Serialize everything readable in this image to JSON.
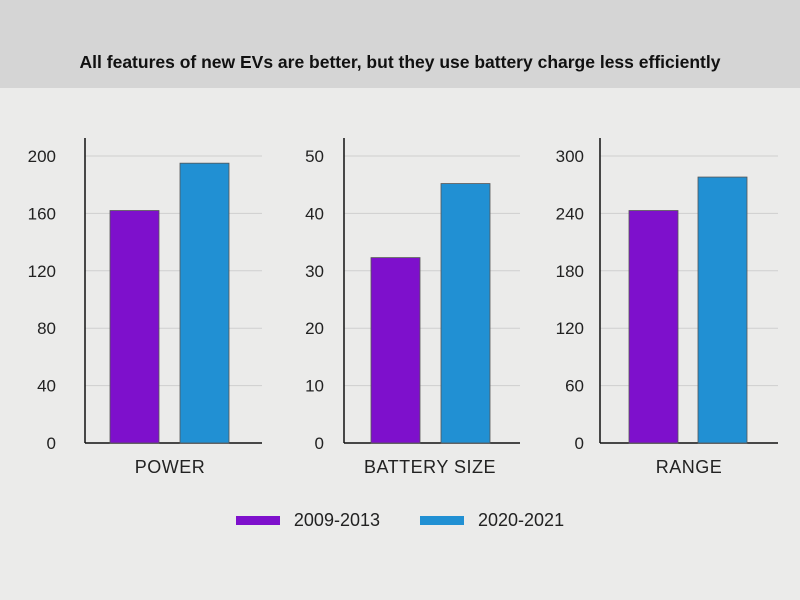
{
  "title": "All features of new EVs are better, but they use battery charge less efficiently",
  "colors": {
    "series_1": "#7e10cc",
    "series_2": "#2190d3",
    "header_bg": "#d5d5d5",
    "bg": "#ebebea",
    "grid": "#cfcfcf"
  },
  "legend": [
    {
      "label": "2009-2013",
      "color": "#7e10cc"
    },
    {
      "label": "2020-2021",
      "color": "#2190d3"
    }
  ],
  "chart_data": [
    {
      "type": "bar",
      "categories": [
        "POWER"
      ],
      "series": [
        {
          "name": "2009-2013",
          "values": [
            162
          ]
        },
        {
          "name": "2020-2021",
          "values": [
            195
          ]
        }
      ],
      "ylim": [
        0,
        200
      ],
      "yticks": [
        0,
        40,
        80,
        120,
        160,
        200
      ],
      "grid": true
    },
    {
      "type": "bar",
      "categories": [
        "BATTERY SIZE"
      ],
      "series": [
        {
          "name": "2009-2013",
          "values": [
            32.3
          ]
        },
        {
          "name": "2020-2021",
          "values": [
            45.2
          ]
        }
      ],
      "ylim": [
        0,
        50
      ],
      "yticks": [
        0,
        10,
        20,
        30,
        40,
        50
      ],
      "grid": true
    },
    {
      "type": "bar",
      "categories": [
        "RANGE"
      ],
      "series": [
        {
          "name": "2009-2013",
          "values": [
            243
          ]
        },
        {
          "name": "2020-2021",
          "values": [
            278
          ]
        }
      ],
      "ylim": [
        0,
        300
      ],
      "yticks": [
        0,
        60,
        120,
        180,
        240,
        300
      ],
      "grid": true
    }
  ]
}
